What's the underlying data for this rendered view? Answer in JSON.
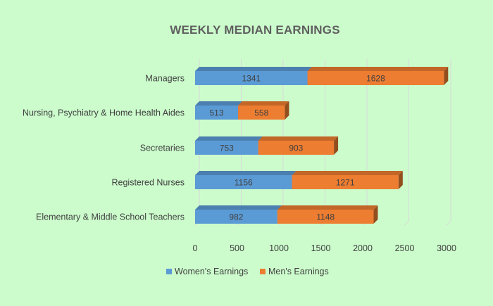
{
  "chart_data": {
    "type": "bar",
    "orientation": "horizontal",
    "stacked": true,
    "style": "3d",
    "title": "WEEKLY MEDIAN EARNINGS",
    "categories": [
      "Managers",
      "Nursing, Psychiatry & Home Health Aides",
      "Secretaries",
      "Registered Nurses",
      "Elementary & Middle School Teachers"
    ],
    "series": [
      {
        "name": "Women's Earnings",
        "values": [
          1341,
          513,
          753,
          1156,
          982
        ],
        "color": "#5b9bd5"
      },
      {
        "name": "Men's Earnings",
        "values": [
          1628,
          558,
          903,
          1271,
          1148
        ],
        "color": "#ed7d31"
      }
    ],
    "xticks": [
      "0",
      "500",
      "1000",
      "1500",
      "2000",
      "2500",
      "3000"
    ],
    "xlim": [
      0,
      3000
    ],
    "grid": true,
    "legend_position": "bottom"
  }
}
